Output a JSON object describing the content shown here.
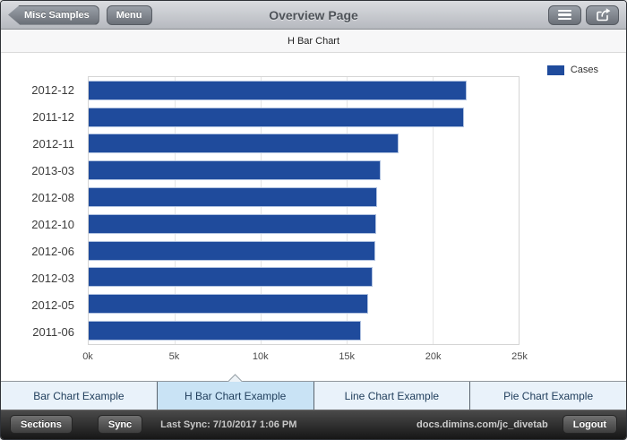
{
  "top_bar": {
    "back_button": "Misc Samples",
    "menu_button": "Menu",
    "title": "Overview Page"
  },
  "subheader": {
    "title": "H Bar Chart"
  },
  "chart_data": {
    "type": "bar",
    "orientation": "horizontal",
    "title": "H Bar Chart",
    "series_name": "Cases",
    "categories": [
      "2012-12",
      "2011-12",
      "2012-11",
      "2013-03",
      "2012-08",
      "2012-10",
      "2012-06",
      "2012-03",
      "2012-05",
      "2011-06"
    ],
    "values": [
      22000,
      21800,
      18000,
      17000,
      16750,
      16700,
      16650,
      16500,
      16250,
      15850
    ],
    "xlim": [
      0,
      25000
    ],
    "x_ticks": [
      "0k",
      "5k",
      "10k",
      "15k",
      "20k",
      "25k"
    ],
    "bar_color": "#1f4b9c",
    "grid": true,
    "legend_position": "top-right"
  },
  "tabs": [
    {
      "label": "Bar Chart Example",
      "selected": false
    },
    {
      "label": "H Bar Chart Example",
      "selected": true
    },
    {
      "label": "Line Chart Example",
      "selected": false
    },
    {
      "label": "Pie Chart Example",
      "selected": false
    }
  ],
  "bottom_bar": {
    "sections_button": "Sections",
    "sync_button": "Sync",
    "last_sync": "Last Sync: 7/10/2017 1:06 PM",
    "server": "docs.dimins.com/jc_divetab",
    "logout_button": "Logout"
  },
  "colors": {
    "bar": "#1f4b9c",
    "tab_bg": "#e9f2fa",
    "tab_selected_bg": "#c9e3f5"
  }
}
